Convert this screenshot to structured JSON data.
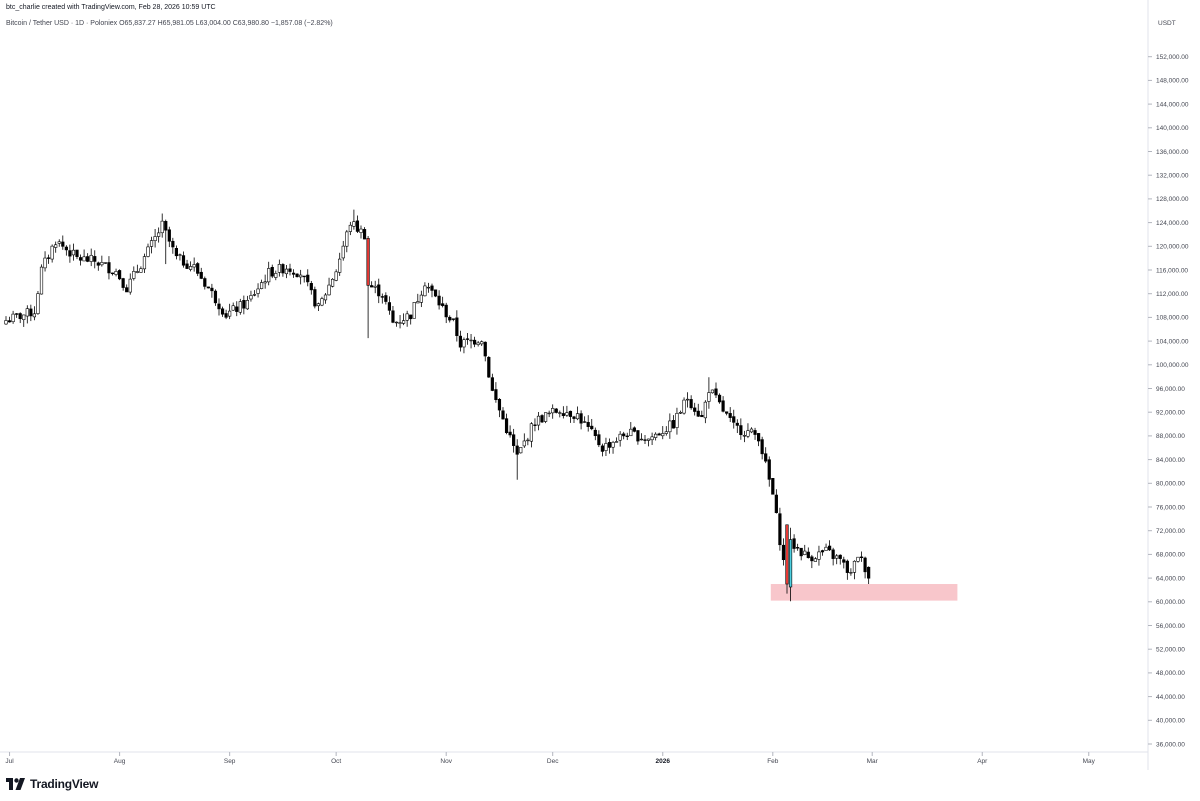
{
  "header": {
    "credit": "btc_charlie created with TradingView.com, Feb 28, 2026 10:59 UTC",
    "symbol_line": "Bitcoin / Tether USD · 1D · Poloniex  O65,837.27  H65,981.05  L63,004.00  C63,980.80  −1,857.08 (−2.82%)"
  },
  "brand": {
    "name": "TradingView"
  },
  "colors": {
    "candle_up_fill": "#ffffff",
    "candle_down_fill": "#000000",
    "outline": "#000000",
    "highlight_red": "#e53935",
    "highlight_cyan": "#4dd0e1",
    "zone": "#f8c6cb"
  },
  "chart_data": {
    "type": "candlestick",
    "currency": "USDT",
    "y_ticks": [
      "152,000.00",
      "148,000.00",
      "144,000.00",
      "140,000.00",
      "136,000.00",
      "132,000.00",
      "128,000.00",
      "124,000.00",
      "120,000.00",
      "116,000.00",
      "112,000.00",
      "108,000.00",
      "104,000.00",
      "100,000.00",
      "96,000.00",
      "92,000.00",
      "88,000.00",
      "84,000.00",
      "80,000.00",
      "76,000.00",
      "72,000.00",
      "68,000.00",
      "64,000.00",
      "60,000.00",
      "56,000.00",
      "52,000.00",
      "48,000.00",
      "44,000.00",
      "40,000.00",
      "36,000.00"
    ],
    "y_tick_values": [
      152000,
      148000,
      144000,
      140000,
      136000,
      132000,
      128000,
      124000,
      120000,
      116000,
      112000,
      108000,
      104000,
      100000,
      96000,
      92000,
      88000,
      84000,
      80000,
      76000,
      72000,
      68000,
      64000,
      60000,
      56000,
      52000,
      48000,
      44000,
      40000,
      36000
    ],
    "ylim": [
      34500,
      157000
    ],
    "x_labels": [
      "Jul",
      "Aug",
      "Sep",
      "Oct",
      "Nov",
      "Dec",
      "2026",
      "Feb",
      "Mar",
      "Apr",
      "May"
    ],
    "x_label_dates": [
      "2025-07-01",
      "2025-08-01",
      "2025-09-01",
      "2025-10-01",
      "2025-11-01",
      "2025-12-01",
      "2026-01-01",
      "2026-02-01",
      "2026-03-01",
      "2026-04-01",
      "2026-05-01"
    ],
    "bold_labels": [
      "2026"
    ],
    "start_date": "2025-06-30",
    "close_path": [
      [
        "2025-06-30",
        107500
      ],
      [
        "2025-07-08",
        109000
      ],
      [
        "2025-07-10",
        116000
      ],
      [
        "2025-07-14",
        121000
      ],
      [
        "2025-07-20",
        118000
      ],
      [
        "2025-07-25",
        117500
      ],
      [
        "2025-07-31",
        115800
      ],
      [
        "2025-08-03",
        113000
      ],
      [
        "2025-08-07",
        117000
      ],
      [
        "2025-08-13",
        123500
      ],
      [
        "2025-08-17",
        118000
      ],
      [
        "2025-08-22",
        116500
      ],
      [
        "2025-08-31",
        108500
      ],
      [
        "2025-09-06",
        110500
      ],
      [
        "2025-09-12",
        115500
      ],
      [
        "2025-09-17",
        116500
      ],
      [
        "2025-09-21",
        115500
      ],
      [
        "2025-09-26",
        109500
      ],
      [
        "2025-10-01",
        116000
      ],
      [
        "2025-10-05",
        124000
      ],
      [
        "2025-10-09",
        122000
      ],
      [
        "2025-10-10",
        113500
      ],
      [
        "2025-10-14",
        112000
      ],
      [
        "2025-10-17",
        107000
      ],
      [
        "2025-10-22",
        108500
      ],
      [
        "2025-10-26",
        114000
      ],
      [
        "2025-10-31",
        109500
      ],
      [
        "2025-11-03",
        107000
      ],
      [
        "2025-11-05",
        103500
      ],
      [
        "2025-11-11",
        104500
      ],
      [
        "2025-11-14",
        95500
      ],
      [
        "2025-11-21",
        84500
      ],
      [
        "2025-11-26",
        90500
      ],
      [
        "2025-12-03",
        92500
      ],
      [
        "2025-12-08",
        91500
      ],
      [
        "2025-12-15",
        86000
      ],
      [
        "2025-12-22",
        88500
      ],
      [
        "2025-12-28",
        87500
      ],
      [
        "2026-01-04",
        90000
      ],
      [
        "2026-01-08",
        94500
      ],
      [
        "2026-01-12",
        91000
      ],
      [
        "2026-01-14",
        96000
      ],
      [
        "2026-01-21",
        89500
      ],
      [
        "2026-01-28",
        88000
      ],
      [
        "2026-02-01",
        78000
      ],
      [
        "2026-02-05",
        63000
      ],
      [
        "2026-02-06",
        70000
      ],
      [
        "2026-02-11",
        67500
      ],
      [
        "2026-02-16",
        68500
      ],
      [
        "2026-02-20",
        67000
      ],
      [
        "2026-02-23",
        64500
      ],
      [
        "2026-02-25",
        68000
      ],
      [
        "2026-02-27",
        65838
      ],
      [
        "2026-02-28",
        63981
      ]
    ],
    "last_candle": {
      "open": 65837.27,
      "high": 65981.05,
      "low": 63004.0,
      "close": 63980.8
    },
    "extremes": [
      [
        "2025-08-14",
        124500,
        117000
      ],
      [
        "2025-10-06",
        126200,
        123000
      ],
      [
        "2025-10-10",
        113000,
        104500
      ],
      [
        "2025-11-21",
        85500,
        80600
      ],
      [
        "2026-01-14",
        97900,
        95000
      ],
      [
        "2026-02-06",
        72500,
        60000
      ]
    ],
    "highlighted_candles": [
      {
        "date": "2025-10-10",
        "color": "red"
      },
      {
        "date": "2026-02-05",
        "color": "red"
      },
      {
        "date": "2026-02-06",
        "color": "cyan"
      }
    ],
    "zones": [
      {
        "price_low": 60200,
        "price_high": 63000,
        "start": "2026-02-01",
        "end": "2026-03-25"
      }
    ]
  }
}
